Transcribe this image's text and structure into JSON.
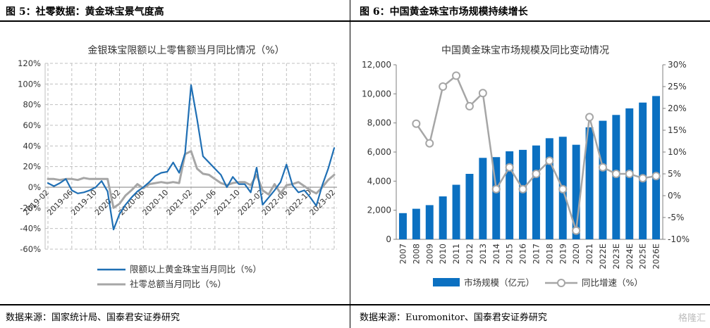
{
  "left_panel": {
    "fig_title": "图 5：社零数据：黄金珠宝景气度高",
    "source": "数据来源：国家统计局、国泰君安证券研究"
  },
  "right_panel": {
    "fig_title": "图 6：中国黄金珠宝市场规模持续增长",
    "source": "数据来源：Euromonitor、国泰君安证券研究"
  },
  "watermark": "格隆汇",
  "chart_data": [
    {
      "type": "line",
      "title": "金银珠宝限额以上零售额当月同比情况（%）",
      "ylim": [
        -60,
        120
      ],
      "yticks": [
        -60,
        -40,
        -20,
        0,
        20,
        40,
        60,
        80,
        100,
        120
      ],
      "ytick_labels": [
        "-60%",
        "-40%",
        "-20%",
        "0%",
        "20%",
        "40%",
        "60%",
        "80%",
        "100%",
        "120%"
      ],
      "x_labels": [
        "2019-02",
        "2019-06",
        "2019-10",
        "2020-02",
        "2020-06",
        "2020-10",
        "2021-02",
        "2021-06",
        "2021-10",
        "2022-02",
        "2022-06",
        "2022-10",
        "2023-02"
      ],
      "x_label_index": [
        0,
        4,
        8,
        12,
        16,
        20,
        24,
        28,
        32,
        36,
        40,
        44,
        48
      ],
      "series": [
        {
          "name": "限额以上黄金珠宝当月同比（%）",
          "color": "#1f6fb4",
          "values": [
            4,
            1,
            4,
            8,
            -3,
            -6,
            -5,
            -3,
            0,
            6,
            -4,
            -41,
            -26,
            -17,
            -10,
            -4,
            0,
            5,
            11,
            14,
            15,
            24,
            14,
            33,
            99,
            66,
            30,
            24,
            18,
            12,
            0,
            10,
            3,
            3,
            -5,
            19,
            -17,
            -10,
            -3,
            5,
            22,
            2,
            -5,
            -3,
            -10,
            -18,
            2,
            18,
            38
          ]
        },
        {
          "name": "社零总额当月同比（%）",
          "color": "#a6a6a6",
          "values": [
            8,
            8,
            7,
            8,
            8,
            7,
            9,
            8,
            8,
            8,
            8,
            -20,
            -16,
            -8,
            -3,
            3,
            -1,
            3,
            4,
            5,
            4,
            5,
            4,
            32,
            35,
            18,
            13,
            12,
            8,
            4,
            2,
            4,
            5,
            5,
            2,
            12,
            -3,
            -7,
            3,
            -6,
            2,
            3,
            5,
            1,
            -3,
            -6,
            0,
            7,
            12
          ]
        }
      ]
    },
    {
      "type": "bar+line",
      "title": "中国黄金珠宝市场规模及同比变动情况",
      "categories": [
        "2007",
        "2008",
        "2009",
        "2010",
        "2011",
        "2012",
        "2013",
        "2014",
        "2015",
        "2016",
        "2017",
        "2018",
        "2019",
        "2020",
        "2021",
        "2022E",
        "2023E",
        "2024E",
        "2025E",
        "2026E"
      ],
      "y_left_lim": [
        0,
        12000
      ],
      "y_left_ticks": [
        "0",
        "2,000",
        "4,000",
        "6,000",
        "8,000",
        "10,000",
        "12,000"
      ],
      "y_right_lim": [
        -10,
        30
      ],
      "y_right_ticks": [
        "-10%",
        "-5%",
        "0%",
        "5%",
        "10%",
        "15%",
        "20%",
        "25%",
        "30%"
      ],
      "series": [
        {
          "name": "市场规模（亿元）",
          "type": "bar",
          "color": "#0b70c1",
          "values": [
            1800,
            2100,
            2350,
            2950,
            3750,
            4500,
            5600,
            5650,
            6050,
            6150,
            6450,
            6950,
            7050,
            6500,
            7700,
            8150,
            8550,
            9000,
            9400,
            9850
          ]
        },
        {
          "name": "同比增速（%）",
          "type": "line",
          "color": "#a6a6a6",
          "values": [
            null,
            16.5,
            12,
            25,
            27.5,
            20.5,
            23.5,
            1.5,
            6.5,
            1.5,
            5,
            8,
            1.5,
            -8,
            18,
            6.5,
            5,
            5,
            4,
            4.5
          ]
        }
      ]
    }
  ]
}
